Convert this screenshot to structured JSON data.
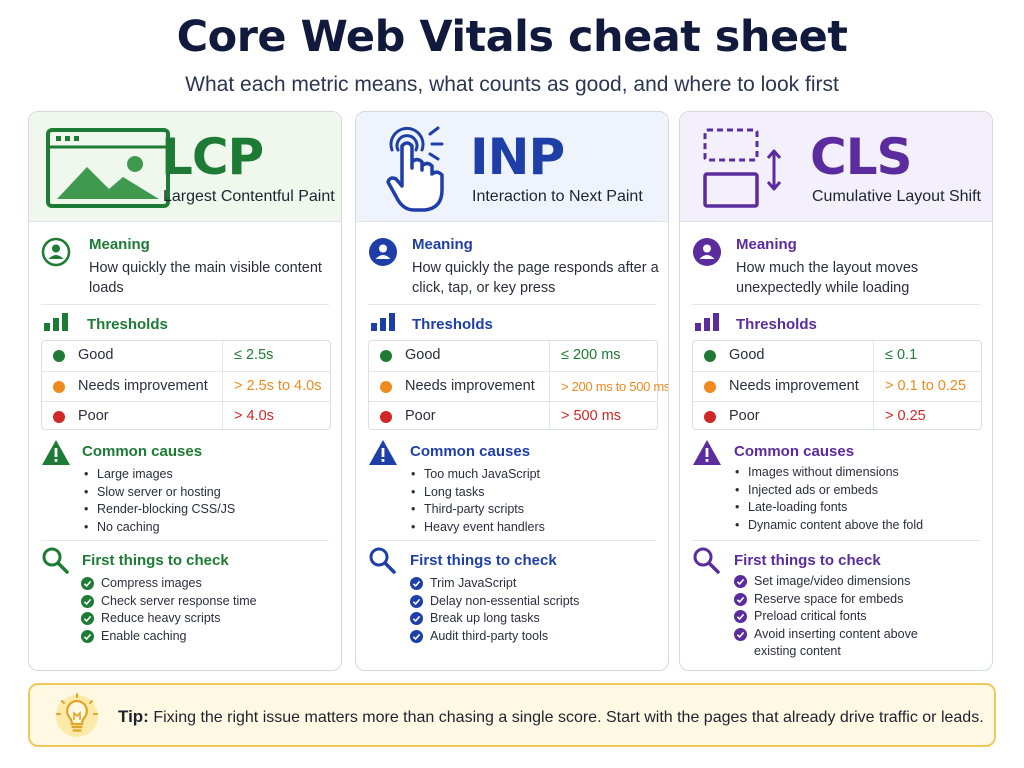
{
  "header": {
    "title": "Core Web Vitals cheat sheet",
    "subtitle": "What each metric means, what counts as good, and where to look first"
  },
  "colors": {
    "lcp": "#1e7b35",
    "inp": "#1f3fa8",
    "cls": "#5b2c9e",
    "good": "#1f7a34",
    "needs_improvement": "#ee8a1e",
    "poor": "#d12727",
    "tip_border": "#f0c85a"
  },
  "cards": [
    {
      "metric": "LCP",
      "full_name": "Largest Contentful Paint",
      "icon": "image-window-icon",
      "meaning_title": "Meaning",
      "meaning": "How quickly the main visible content loads",
      "thresholds_title": "Thresholds",
      "thresholds": [
        {
          "label": "Good",
          "value": "≤ 2.5s"
        },
        {
          "label": "Needs improvement",
          "value": "> 2.5s to 4.0s"
        },
        {
          "label": "Poor",
          "value": "> 4.0s"
        }
      ],
      "causes_title": "Common causes",
      "causes": [
        "Large images",
        "Slow server or hosting",
        "Render-blocking CSS/JS",
        "No caching"
      ],
      "checks_title": "First things to check",
      "checks": [
        "Compress images",
        "Check server response time",
        "Reduce heavy scripts",
        "Enable caching"
      ]
    },
    {
      "metric": "INP",
      "full_name": "Interaction to Next Paint",
      "icon": "tap-hand-icon",
      "meaning_title": "Meaning",
      "meaning": "How quickly the page responds after a click, tap, or key press",
      "thresholds_title": "Thresholds",
      "thresholds": [
        {
          "label": "Good",
          "value": "≤ 200 ms"
        },
        {
          "label": "Needs improvement",
          "value": "> 200 ms to 500 ms"
        },
        {
          "label": "Poor",
          "value": "> 500 ms"
        }
      ],
      "causes_title": "Common causes",
      "causes": [
        "Too much JavaScript",
        "Long tasks",
        "Third-party scripts",
        "Heavy event handlers"
      ],
      "checks_title": "First things to check",
      "checks": [
        "Trim JavaScript",
        "Delay non-essential scripts",
        "Break up long tasks",
        "Audit third-party tools"
      ]
    },
    {
      "metric": "CLS",
      "full_name": "Cumulative Layout Shift",
      "icon": "layout-shift-icon",
      "meaning_title": "Meaning",
      "meaning": "How much the layout moves unexpectedly while loading",
      "thresholds_title": "Thresholds",
      "thresholds": [
        {
          "label": "Good",
          "value": "≤ 0.1"
        },
        {
          "label": "Needs improvement",
          "value": "> 0.1 to 0.25"
        },
        {
          "label": "Poor",
          "value": "> 0.25"
        }
      ],
      "causes_title": "Common causes",
      "causes": [
        "Images without dimensions",
        "Injected ads or embeds",
        "Late-loading fonts",
        "Dynamic content above the fold"
      ],
      "checks_title": "First things to check",
      "checks": [
        "Set image/video dimensions",
        "Reserve space for embeds",
        "Preload critical fonts",
        "Avoid inserting content above existing content"
      ]
    }
  ],
  "tip": {
    "label": "Tip:",
    "text": "Fixing the right issue matters more than chasing a single score. Start with the pages that already drive traffic or leads.",
    "icon": "lightbulb-icon"
  }
}
